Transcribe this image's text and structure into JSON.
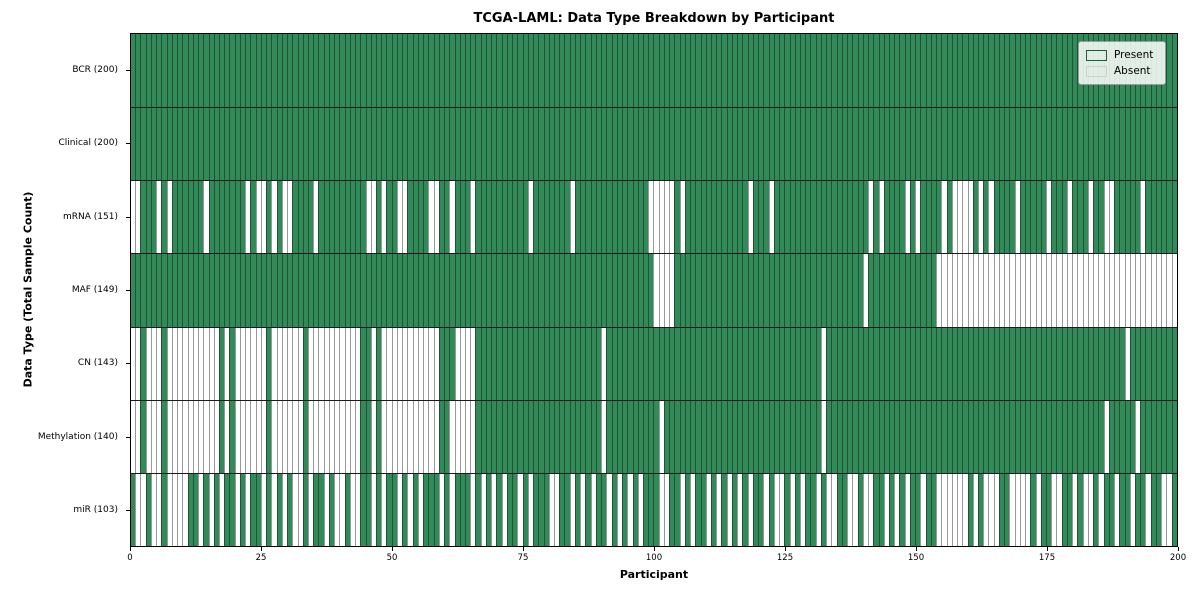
{
  "chart_data": {
    "type": "heatmap",
    "title": "TCGA-LAML: Data Type Breakdown by Participant",
    "xlabel": "Participant",
    "ylabel": "Data Type (Total Sample Count)",
    "x_ticks": [
      0,
      25,
      50,
      75,
      100,
      125,
      150,
      175,
      200
    ],
    "x_range": [
      0,
      200
    ],
    "n_participants": 200,
    "grid": false,
    "legend_position": "upper right",
    "colors": {
      "present": "#338a59",
      "absent": "#ffffff",
      "cell_edge": "rgba(0,0,0,0.40)",
      "row_divider": "#1a1a1a",
      "plot_border": "#000000"
    },
    "legend": [
      {
        "label": "Present",
        "color": "#338a59"
      },
      {
        "label": "Absent",
        "color": "#ffffff"
      }
    ],
    "rows": [
      {
        "data_type": "BCR",
        "label": "BCR (200)",
        "present_count": 200,
        "pattern": "11111111111111111111111111111111111111111111111111111111111111111111111111111111111111111111111111111111111111111111111111111111111111111111111111111111111111111111111111111111111111111111111111111111"
      },
      {
        "data_type": "Clinical",
        "label": "Clinical (200)",
        "present_count": 200,
        "pattern": "11111111111111111111111111111111111111111111111111111111111111111111111111111111111111111111111111111111111111111111111111111111111111111111111111111111111111111111111111111111111111111111111111111111"
      },
      {
        "data_type": "mRNA",
        "label": "mRNA (151)",
        "present_count": 151,
        "pattern": "00111010111111011111110100101001111011111111100101100111100110111011111111110111111101111111111111100000101111111111110111011111111111111111101011110101111010000101011110111110111011101100111110111111"
      },
      {
        "data_type": "MAF",
        "label": "MAF (149)",
        "present_count": 149,
        "pattern": "11111111111111111111111111111111111111111111111111111111111111111111111111111111111111111111111111110000111111111111111111111111111111111111011111111111110000000000000000000000000000000000000000000000"
      },
      {
        "data_type": "CN",
        "label": "CN (143)",
        "present_count": 143,
        "pattern": "00100010000000000101000000100000010000000000110100000000000111000011111111111111111111111101111111111111111111111111111111111111111101111111111111111111111111111111111111111111111111111111110111111111"
      },
      {
        "data_type": "Methylation",
        "label": "Methylation (140)",
        "present_count": 140,
        "pattern": "00100010000000000101000000100000010000000000110100000000000110000011111111111111111111111101111111111011111111111111111111111111111101111111111111111111111111111111111111111111111111111101111101111111"
      },
      {
        "data_type": "miR",
        "label": "miR (103)",
        "present_count": 103,
        "pattern": "10010010000110101011010110101010010110100100110101101010111010111010101011010111001101010110101010111001101011010101010110100101011010011001001101010110110000001010001100001011001101001011011011011001"
      }
    ]
  }
}
